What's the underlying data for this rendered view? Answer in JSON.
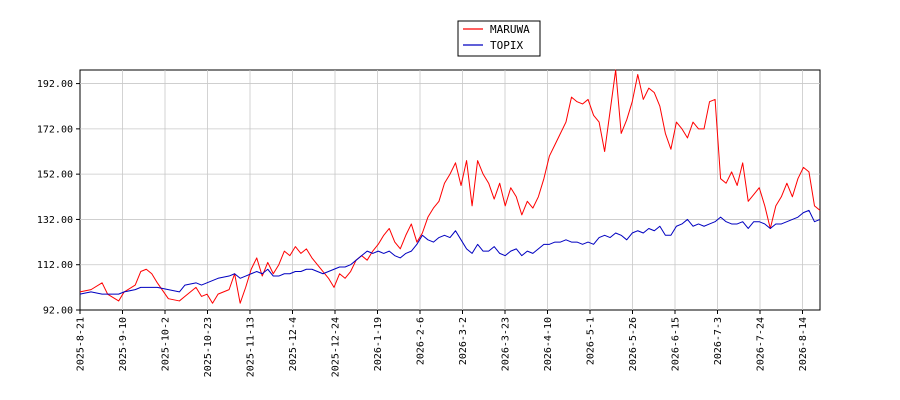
{
  "chart_data": {
    "type": "line",
    "title": "",
    "xlabel": "",
    "ylabel": "",
    "ylim": [
      92,
      198
    ],
    "yticks": [
      "92.00",
      "112.00",
      "132.00",
      "152.00",
      "172.00",
      "192.00"
    ],
    "xticks": [
      "2025-8-21",
      "2025-9-10",
      "2025-10-2",
      "2025-10-23",
      "2025-11-13",
      "2025-12-4",
      "2025-12-24",
      "2026-1-19",
      "2026-2-6",
      "2026-3-2",
      "2026-3-23",
      "2026-4-10",
      "2026-5-1",
      "2026-5-26",
      "2026-6-15",
      "2026-7-3",
      "2026-7-24",
      "2026-8-14"
    ],
    "grid": true,
    "legend": "top-center",
    "series": [
      {
        "name": "MARUWA",
        "color": "#ff0000",
        "values": [
          [
            0,
            100
          ],
          [
            2,
            101
          ],
          [
            4,
            104
          ],
          [
            5,
            99
          ],
          [
            7,
            96
          ],
          [
            8,
            100
          ],
          [
            10,
            103
          ],
          [
            11,
            109
          ],
          [
            12,
            110
          ],
          [
            13,
            108
          ],
          [
            14,
            104
          ],
          [
            16,
            97
          ],
          [
            18,
            96
          ],
          [
            19,
            98
          ],
          [
            21,
            102
          ],
          [
            22,
            98
          ],
          [
            23,
            99
          ],
          [
            24,
            95
          ],
          [
            25,
            99
          ],
          [
            27,
            101
          ],
          [
            28,
            108
          ],
          [
            29,
            95
          ],
          [
            30,
            102
          ],
          [
            31,
            110
          ],
          [
            32,
            115
          ],
          [
            33,
            107
          ],
          [
            34,
            113
          ],
          [
            35,
            108
          ],
          [
            36,
            112
          ],
          [
            37,
            118
          ],
          [
            38,
            116
          ],
          [
            39,
            120
          ],
          [
            40,
            117
          ],
          [
            41,
            119
          ],
          [
            42,
            115
          ],
          [
            44,
            109
          ],
          [
            45,
            106
          ],
          [
            46,
            102
          ],
          [
            47,
            108
          ],
          [
            48,
            106
          ],
          [
            49,
            109
          ],
          [
            50,
            114
          ],
          [
            51,
            116
          ],
          [
            52,
            114
          ],
          [
            53,
            118
          ],
          [
            54,
            121
          ],
          [
            55,
            125
          ],
          [
            56,
            128
          ],
          [
            57,
            122
          ],
          [
            58,
            119
          ],
          [
            59,
            125
          ],
          [
            60,
            130
          ],
          [
            61,
            122
          ],
          [
            62,
            126
          ],
          [
            63,
            133
          ],
          [
            64,
            137
          ],
          [
            65,
            140
          ],
          [
            66,
            148
          ],
          [
            67,
            152
          ],
          [
            68,
            157
          ],
          [
            69,
            147
          ],
          [
            70,
            158
          ],
          [
            71,
            138
          ],
          [
            72,
            158
          ],
          [
            73,
            152
          ],
          [
            74,
            148
          ],
          [
            75,
            141
          ],
          [
            76,
            148
          ],
          [
            77,
            138
          ],
          [
            78,
            146
          ],
          [
            79,
            142
          ],
          [
            80,
            134
          ],
          [
            81,
            140
          ],
          [
            82,
            137
          ],
          [
            83,
            142
          ],
          [
            84,
            150
          ],
          [
            85,
            160
          ],
          [
            86,
            165
          ],
          [
            87,
            170
          ],
          [
            88,
            175
          ],
          [
            89,
            186
          ],
          [
            90,
            184
          ],
          [
            91,
            183
          ],
          [
            92,
            185
          ],
          [
            93,
            178
          ],
          [
            94,
            175
          ],
          [
            95,
            162
          ],
          [
            96,
            180
          ],
          [
            97,
            198
          ],
          [
            98,
            170
          ],
          [
            99,
            176
          ],
          [
            100,
            184
          ],
          [
            101,
            196
          ],
          [
            102,
            185
          ],
          [
            103,
            190
          ],
          [
            104,
            188
          ],
          [
            105,
            182
          ],
          [
            106,
            170
          ],
          [
            107,
            163
          ],
          [
            108,
            175
          ],
          [
            109,
            172
          ],
          [
            110,
            168
          ],
          [
            111,
            175
          ],
          [
            112,
            172
          ],
          [
            113,
            172
          ],
          [
            114,
            184
          ],
          [
            115,
            185
          ],
          [
            116,
            150
          ],
          [
            117,
            148
          ],
          [
            118,
            153
          ],
          [
            119,
            147
          ],
          [
            120,
            157
          ],
          [
            121,
            140
          ],
          [
            122,
            143
          ],
          [
            123,
            146
          ],
          [
            124,
            138
          ],
          [
            125,
            128
          ],
          [
            126,
            138
          ],
          [
            127,
            142
          ],
          [
            128,
            148
          ],
          [
            129,
            142
          ],
          [
            130,
            150
          ],
          [
            131,
            155
          ],
          [
            132,
            153
          ],
          [
            133,
            138
          ],
          [
            134,
            136
          ]
        ]
      },
      {
        "name": "TOPIX",
        "color": "#0000c0",
        "values": [
          [
            0,
            99
          ],
          [
            2,
            100
          ],
          [
            4,
            99
          ],
          [
            5,
            99
          ],
          [
            7,
            99
          ],
          [
            8,
            100
          ],
          [
            10,
            101
          ],
          [
            11,
            102
          ],
          [
            12,
            102
          ],
          [
            13,
            102
          ],
          [
            14,
            102
          ],
          [
            16,
            101
          ],
          [
            18,
            100
          ],
          [
            19,
            103
          ],
          [
            21,
            104
          ],
          [
            22,
            103
          ],
          [
            23,
            104
          ],
          [
            24,
            105
          ],
          [
            25,
            106
          ],
          [
            27,
            107
          ],
          [
            28,
            108
          ],
          [
            29,
            106
          ],
          [
            30,
            107
          ],
          [
            31,
            108
          ],
          [
            32,
            109
          ],
          [
            33,
            108
          ],
          [
            34,
            110
          ],
          [
            35,
            107
          ],
          [
            36,
            107
          ],
          [
            37,
            108
          ],
          [
            38,
            108
          ],
          [
            39,
            109
          ],
          [
            40,
            109
          ],
          [
            41,
            110
          ],
          [
            42,
            110
          ],
          [
            44,
            108
          ],
          [
            45,
            109
          ],
          [
            46,
            110
          ],
          [
            47,
            111
          ],
          [
            48,
            111
          ],
          [
            49,
            112
          ],
          [
            50,
            114
          ],
          [
            51,
            116
          ],
          [
            52,
            118
          ],
          [
            53,
            117
          ],
          [
            54,
            118
          ],
          [
            55,
            117
          ],
          [
            56,
            118
          ],
          [
            57,
            116
          ],
          [
            58,
            115
          ],
          [
            59,
            117
          ],
          [
            60,
            118
          ],
          [
            61,
            121
          ],
          [
            62,
            125
          ],
          [
            63,
            123
          ],
          [
            64,
            122
          ],
          [
            65,
            124
          ],
          [
            66,
            125
          ],
          [
            67,
            124
          ],
          [
            68,
            127
          ],
          [
            69,
            123
          ],
          [
            70,
            119
          ],
          [
            71,
            117
          ],
          [
            72,
            121
          ],
          [
            73,
            118
          ],
          [
            74,
            118
          ],
          [
            75,
            120
          ],
          [
            76,
            117
          ],
          [
            77,
            116
          ],
          [
            78,
            118
          ],
          [
            79,
            119
          ],
          [
            80,
            116
          ],
          [
            81,
            118
          ],
          [
            82,
            117
          ],
          [
            83,
            119
          ],
          [
            84,
            121
          ],
          [
            85,
            121
          ],
          [
            86,
            122
          ],
          [
            87,
            122
          ],
          [
            88,
            123
          ],
          [
            89,
            122
          ],
          [
            90,
            122
          ],
          [
            91,
            121
          ],
          [
            92,
            122
          ],
          [
            93,
            121
          ],
          [
            94,
            124
          ],
          [
            95,
            125
          ],
          [
            96,
            124
          ],
          [
            97,
            126
          ],
          [
            98,
            125
          ],
          [
            99,
            123
          ],
          [
            100,
            126
          ],
          [
            101,
            127
          ],
          [
            102,
            126
          ],
          [
            103,
            128
          ],
          [
            104,
            127
          ],
          [
            105,
            129
          ],
          [
            106,
            125
          ],
          [
            107,
            125
          ],
          [
            108,
            129
          ],
          [
            109,
            130
          ],
          [
            110,
            132
          ],
          [
            111,
            129
          ],
          [
            112,
            130
          ],
          [
            113,
            129
          ],
          [
            114,
            130
          ],
          [
            115,
            131
          ],
          [
            116,
            133
          ],
          [
            117,
            131
          ],
          [
            118,
            130
          ],
          [
            119,
            130
          ],
          [
            120,
            131
          ],
          [
            121,
            128
          ],
          [
            122,
            131
          ],
          [
            123,
            131
          ],
          [
            124,
            130
          ],
          [
            125,
            128
          ],
          [
            126,
            130
          ],
          [
            127,
            130
          ],
          [
            128,
            131
          ],
          [
            129,
            132
          ],
          [
            130,
            133
          ],
          [
            131,
            135
          ],
          [
            132,
            136
          ],
          [
            133,
            131
          ],
          [
            134,
            132
          ]
        ]
      }
    ]
  }
}
